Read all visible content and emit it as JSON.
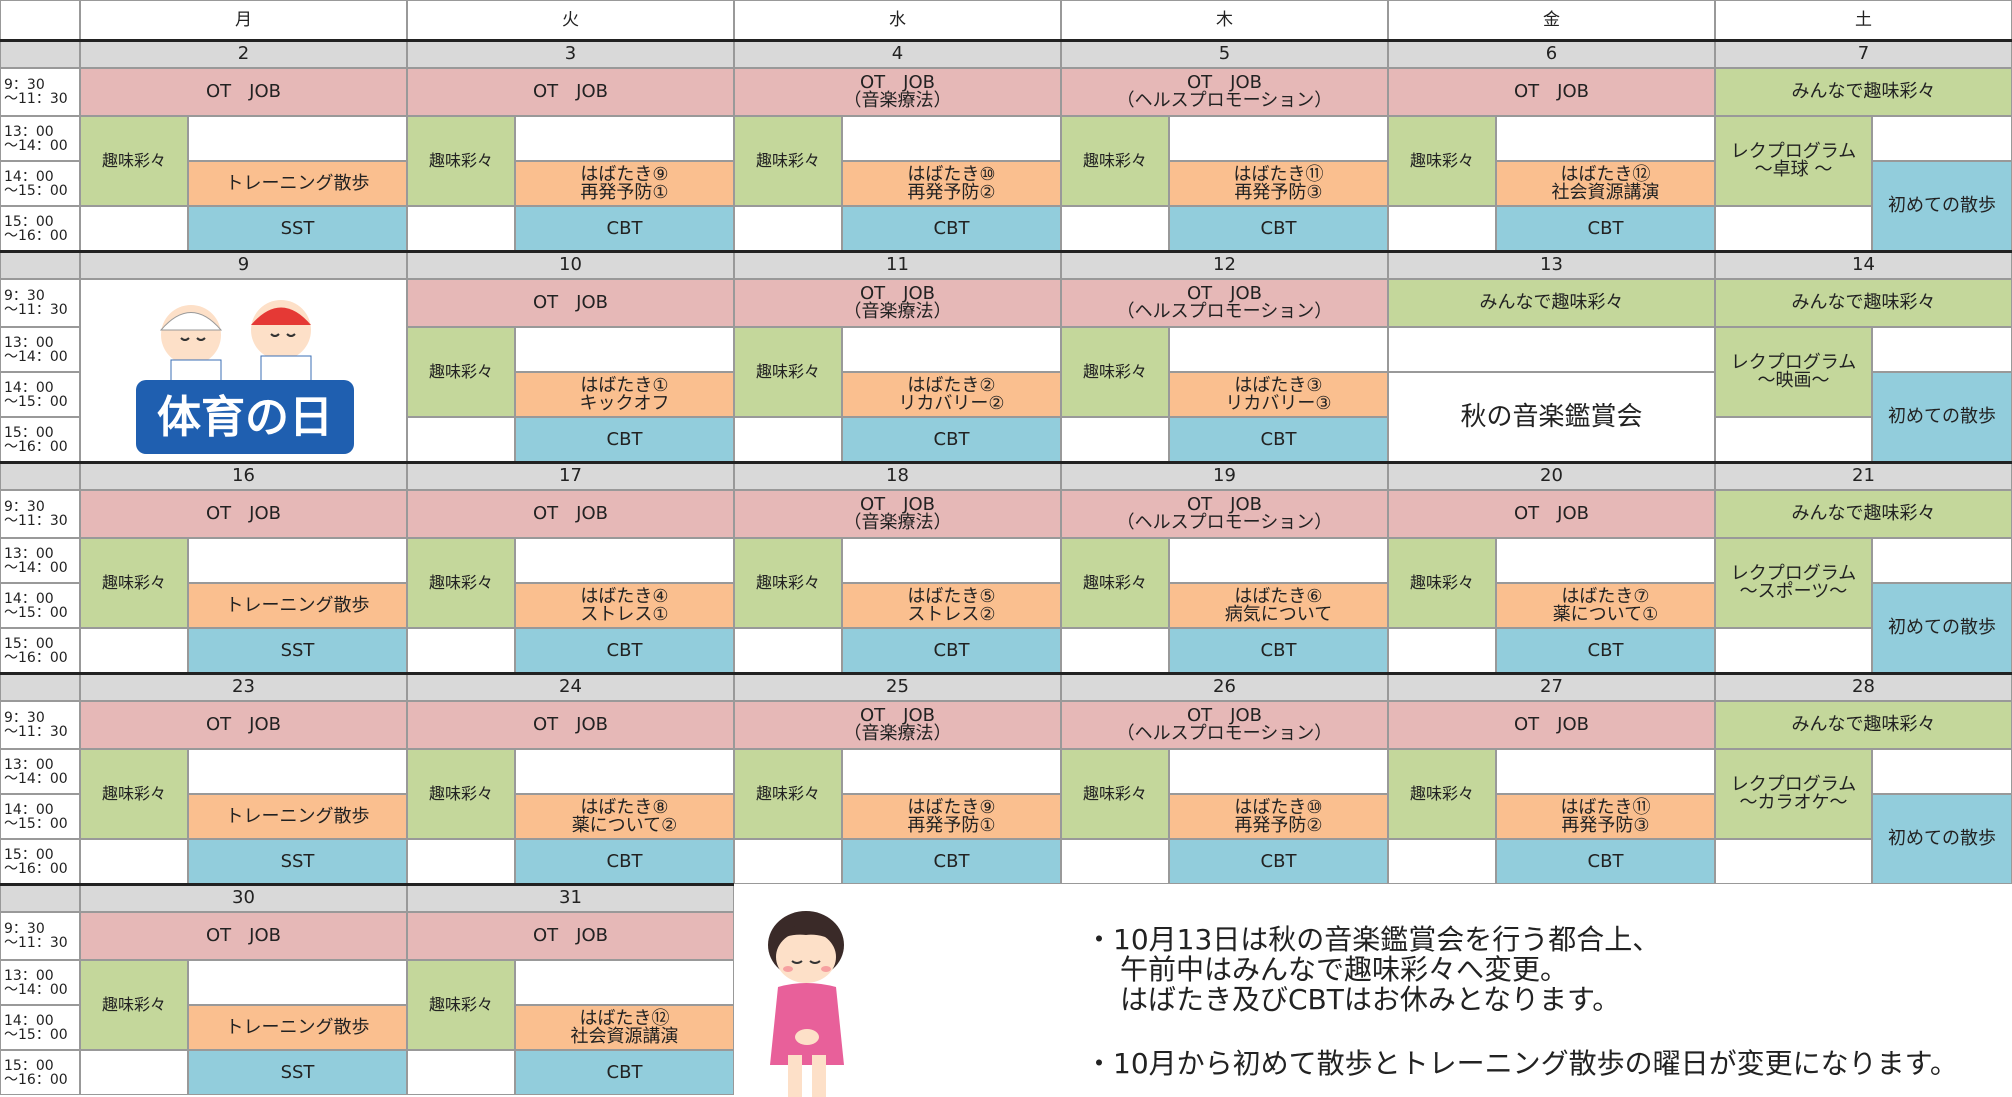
{
  "weekdays": [
    "月",
    "火",
    "水",
    "木",
    "金",
    "土"
  ],
  "time_labels": [
    [
      "9：30",
      "～11：30"
    ],
    [
      "13：00",
      "～14：00"
    ],
    [
      "14：00",
      "～15：00"
    ],
    [
      "15：00",
      "～16：00"
    ]
  ],
  "weeks": [
    {
      "days": [
        {
          "date": "2",
          "am": [
            "OT　JOB"
          ],
          "hobby": "趣味彩々",
          "p14": [
            "トレーニング散歩"
          ],
          "p15": "SST"
        },
        {
          "date": "3",
          "am": [
            "OT　JOB"
          ],
          "hobby": "趣味彩々",
          "p14": [
            "はばたき⑨",
            "再発予防①"
          ],
          "p15": "CBT"
        },
        {
          "date": "4",
          "am": [
            "OT　JOB",
            "（音楽療法）"
          ],
          "hobby": "趣味彩々",
          "p14": [
            "はばたき⑩",
            "再発予防②"
          ],
          "p15": "CBT"
        },
        {
          "date": "5",
          "am": [
            "OT　JOB",
            "（ヘルスプロモーション）"
          ],
          "hobby": "趣味彩々",
          "p14": [
            "はばたき⑪",
            "再発予防③"
          ],
          "p15": "CBT"
        },
        {
          "date": "6",
          "am": [
            "OT　JOB"
          ],
          "hobby": "趣味彩々",
          "p14": [
            "はばたき⑫",
            "社会資源講演"
          ],
          "p15": "CBT"
        },
        {
          "date": "7",
          "am": [
            "みんなで趣味彩々"
          ],
          "rec": [
            "レクプログラム",
            "～卓球 ～"
          ],
          "walk": "初めての散歩"
        }
      ]
    },
    {
      "days": [
        {
          "date": "9",
          "image": "体育の日"
        },
        {
          "date": "10",
          "am": [
            "OT　JOB"
          ],
          "hobby": "趣味彩々",
          "p14": [
            "はばたき①",
            "キックオフ"
          ],
          "p15": "CBT"
        },
        {
          "date": "11",
          "am": [
            "OT　JOB",
            "（音楽療法）"
          ],
          "hobby": "趣味彩々",
          "p14": [
            "はばたき②",
            "リカバリー②"
          ],
          "p15": "CBT"
        },
        {
          "date": "12",
          "am": [
            "OT　JOB",
            "（ヘルスプロモーション）"
          ],
          "hobby": "趣味彩々",
          "p14": [
            "はばたき③",
            "リカバリー③"
          ],
          "p15": "CBT"
        },
        {
          "date": "13",
          "am": [
            "みんなで趣味彩々"
          ],
          "event": "秋の音楽鑑賞会"
        },
        {
          "date": "14",
          "am": [
            "みんなで趣味彩々"
          ],
          "rec": [
            "レクプログラム",
            "～映画～"
          ],
          "walk": "初めての散歩"
        }
      ]
    },
    {
      "days": [
        {
          "date": "16",
          "am": [
            "OT　JOB"
          ],
          "hobby": "趣味彩々",
          "p14": [
            "トレーニング散歩"
          ],
          "p15": "SST"
        },
        {
          "date": "17",
          "am": [
            "OT　JOB"
          ],
          "hobby": "趣味彩々",
          "p14": [
            "はばたき④",
            "ストレス①"
          ],
          "p15": "CBT"
        },
        {
          "date": "18",
          "am": [
            "OT　JOB",
            "（音楽療法）"
          ],
          "hobby": "趣味彩々",
          "p14": [
            "はばたき⑤",
            "ストレス②"
          ],
          "p15": "CBT"
        },
        {
          "date": "19",
          "am": [
            "OT　JOB",
            "（ヘルスプロモーション）"
          ],
          "hobby": "趣味彩々",
          "p14": [
            "はばたき⑥",
            "病気について"
          ],
          "p15": "CBT"
        },
        {
          "date": "20",
          "am": [
            "OT　JOB"
          ],
          "hobby": "趣味彩々",
          "p14": [
            "はばたき⑦",
            "薬について①"
          ],
          "p15": "CBT"
        },
        {
          "date": "21",
          "am": [
            "みんなで趣味彩々"
          ],
          "rec": [
            "レクプログラム",
            "～スポーツ～"
          ],
          "walk": "初めての散歩"
        }
      ]
    },
    {
      "days": [
        {
          "date": "23",
          "am": [
            "OT　JOB"
          ],
          "hobby": "趣味彩々",
          "p14": [
            "トレーニング散歩"
          ],
          "p15": "SST"
        },
        {
          "date": "24",
          "am": [
            "OT　JOB"
          ],
          "hobby": "趣味彩々",
          "p14": [
            "はばたき⑧",
            "薬について②"
          ],
          "p15": "CBT"
        },
        {
          "date": "25",
          "am": [
            "OT　JOB",
            "（音楽療法）"
          ],
          "hobby": "趣味彩々",
          "p14": [
            "はばたき⑨",
            "再発予防①"
          ],
          "p15": "CBT"
        },
        {
          "date": "26",
          "am": [
            "OT　JOB",
            "（ヘルスプロモーション）"
          ],
          "hobby": "趣味彩々",
          "p14": [
            "はばたき⑩",
            "再発予防②"
          ],
          "p15": "CBT"
        },
        {
          "date": "27",
          "am": [
            "OT　JOB"
          ],
          "hobby": "趣味彩々",
          "p14": [
            "はばたき⑪",
            "再発予防③"
          ],
          "p15": "CBT"
        },
        {
          "date": "28",
          "am": [
            "みんなで趣味彩々"
          ],
          "rec": [
            "レクプログラム",
            "～カラオケ～"
          ],
          "walk": "初めての散歩"
        }
      ]
    },
    {
      "days": [
        {
          "date": "30",
          "am": [
            "OT　JOB"
          ],
          "hobby": "趣味彩々",
          "p14": [
            "トレーニング散歩"
          ],
          "p15": "SST"
        },
        {
          "date": "31",
          "am": [
            "OT　JOB"
          ],
          "hobby": "趣味彩々",
          "p14": [
            "はばたき⑫",
            "社会資源講演"
          ],
          "p15": "CBT"
        }
      ]
    }
  ],
  "notes": [
    "・10月13日は秋の音楽鑑賞会を行う都合上、",
    "午前中はみんなで趣味彩々へ変更。",
    "はばたき及びCBTはお休みとなります。",
    "・10月から初めて散歩とトレーニング散歩の曜日が変更になります。"
  ]
}
